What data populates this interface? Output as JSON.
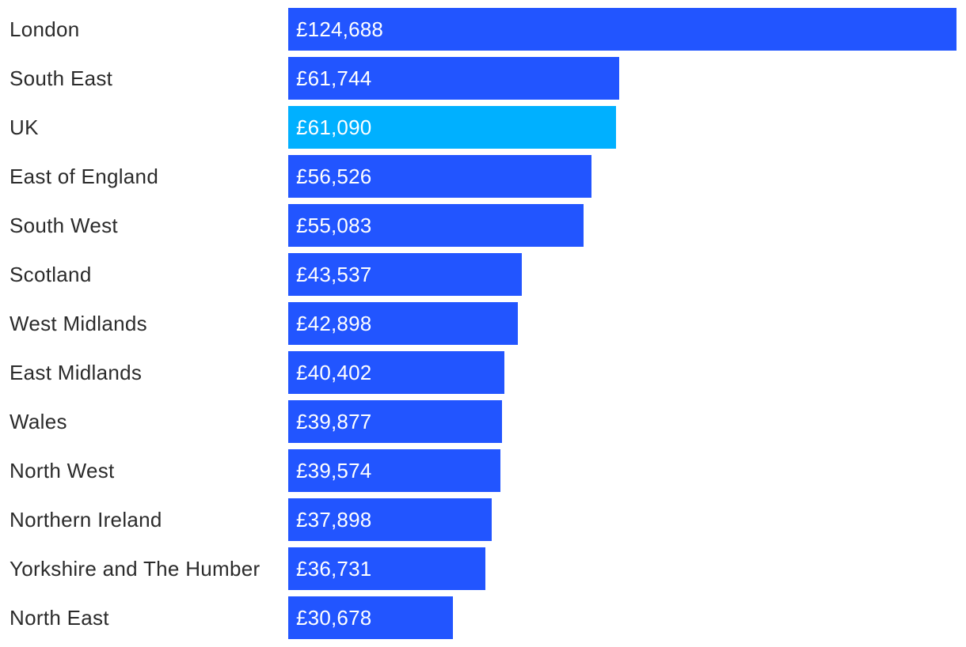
{
  "chart_data": {
    "type": "bar",
    "orientation": "horizontal",
    "categories": [
      "London",
      "South East",
      "UK",
      "East of England",
      "South West",
      "Scotland",
      "West Midlands",
      "East Midlands",
      "Wales",
      "North West",
      "Northern Ireland",
      "Yorkshire and The Humber",
      "North East"
    ],
    "values": [
      124688,
      61744,
      61090,
      56526,
      55083,
      43537,
      42898,
      40402,
      39877,
      39574,
      37898,
      36731,
      30678
    ],
    "value_labels": [
      "£124,688",
      "£61,744",
      "£61,090",
      "£56,526",
      "£55,083",
      "£43,537",
      "£42,898",
      "£40,402",
      "£39,877",
      "£39,574",
      "£37,898",
      "£36,731",
      "£30,678"
    ],
    "highlight": "UK",
    "xlim": [
      0,
      124688
    ],
    "grid": false,
    "legend": "none",
    "title": "",
    "xlabel": "",
    "ylabel": ""
  },
  "colors": {
    "bar": "#2255ff",
    "highlight_bar": "#00b0ff",
    "label_text": "#2b2b2b",
    "value_text": "#ffffff"
  }
}
